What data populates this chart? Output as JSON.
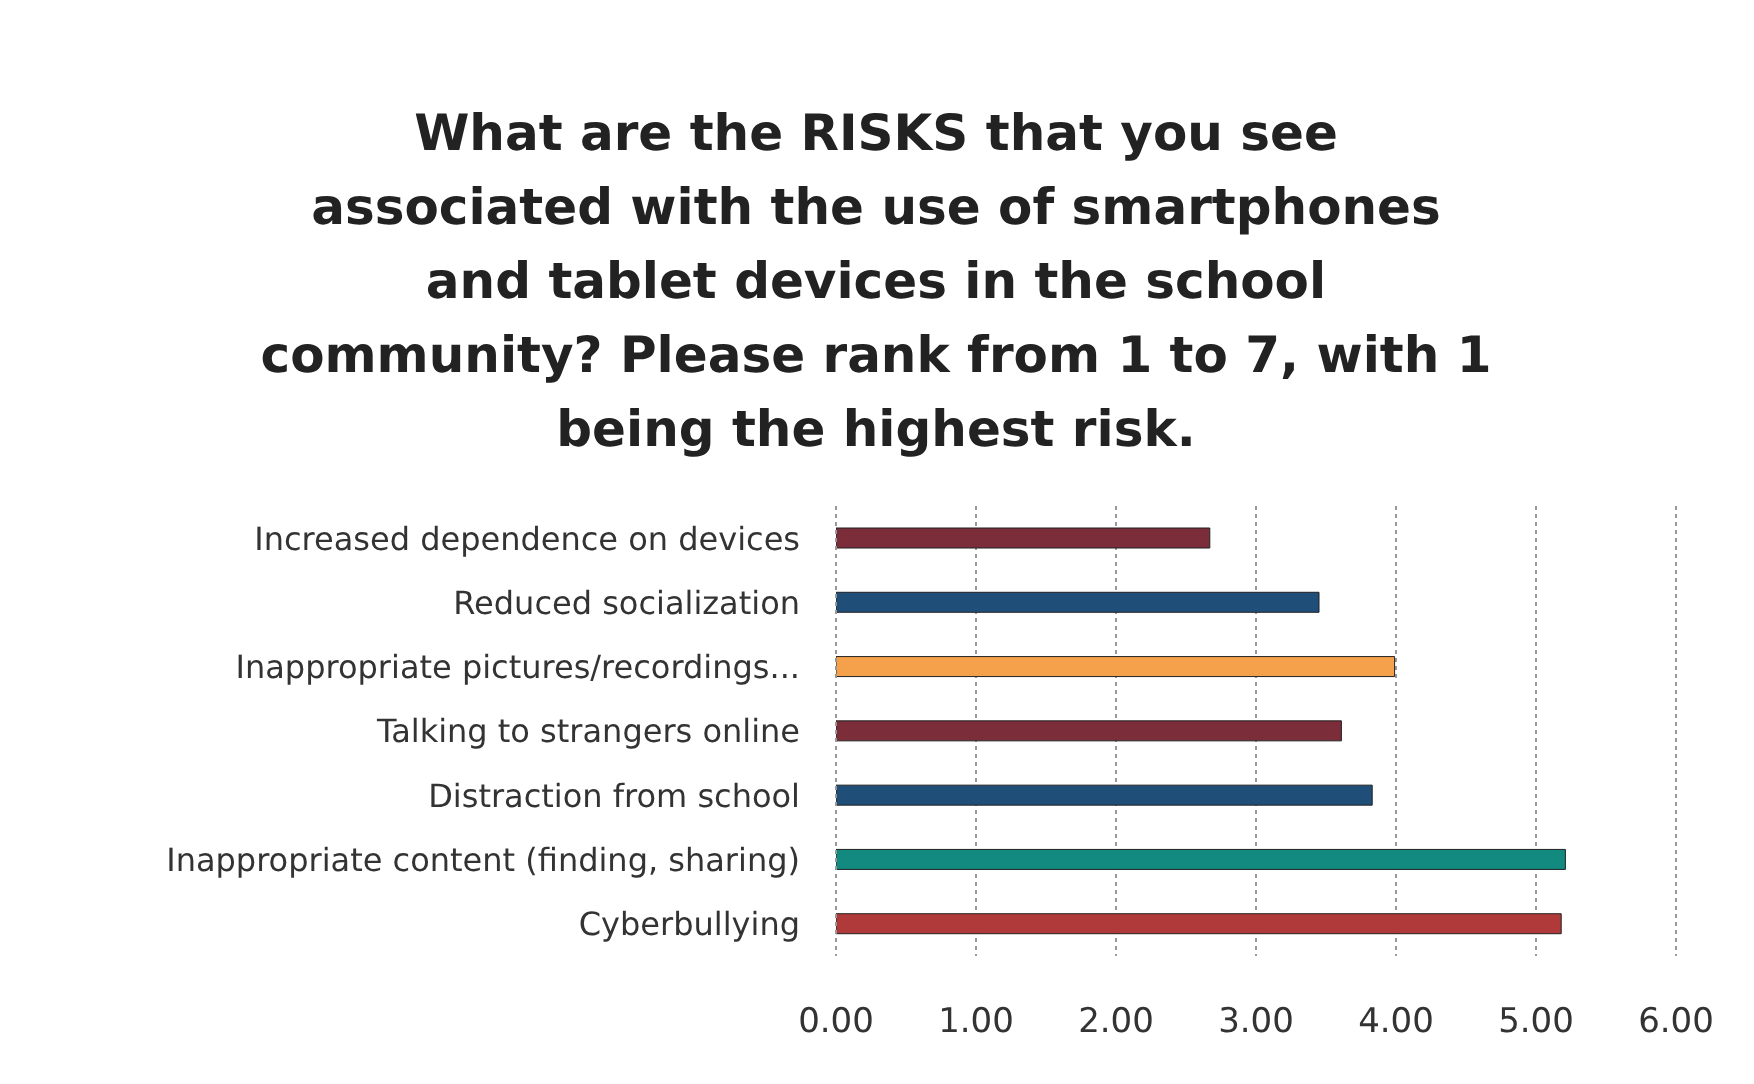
{
  "chart_data": {
    "type": "bar",
    "orientation": "horizontal",
    "title": "What are the RISKS that you see associated with the use of smartphones and tablet devices in the school community? Please rank from 1 to 7, with 1 being the highest risk.",
    "categories": [
      "Increased dependence on devices",
      "Reduced socialization",
      "Inappropriate pictures/recordings...",
      "Talking to strangers online",
      "Distraction from school",
      "Inappropriate content (finding, sharing)",
      "Cyberbullying"
    ],
    "values": [
      2.67,
      3.45,
      3.99,
      3.61,
      3.83,
      5.21,
      5.18
    ],
    "colors": [
      "#7b2d3a",
      "#1f4e79",
      "#f5a04a",
      "#7b2d3a",
      "#1f4e79",
      "#128a80",
      "#b03a3a"
    ],
    "xlim": [
      0,
      6
    ],
    "xticks": [
      {
        "value": 0,
        "label": "0.00"
      },
      {
        "value": 1,
        "label": "1.00"
      },
      {
        "value": 2,
        "label": "2.00"
      },
      {
        "value": 3,
        "label": "3.00"
      },
      {
        "value": 4,
        "label": "4.00"
      },
      {
        "value": 5,
        "label": "5.00"
      },
      {
        "value": 6,
        "label": "6.00"
      }
    ],
    "grid": "x",
    "legend": false
  }
}
